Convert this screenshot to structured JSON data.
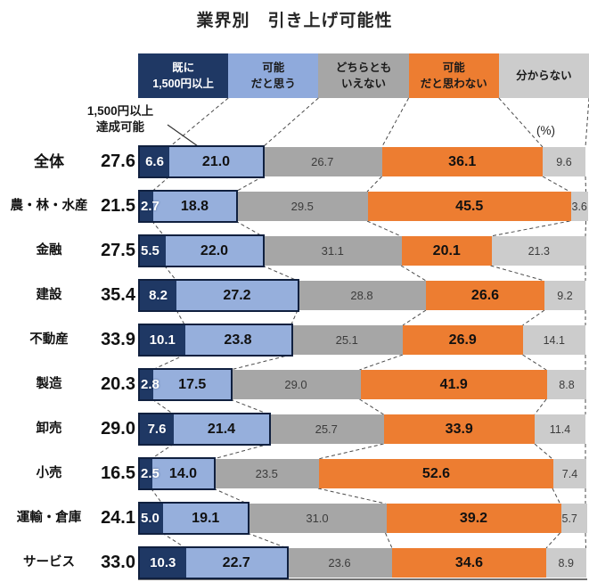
{
  "title": "業界別　引き上げ可能性",
  "unit_label": "(%)",
  "annotation": {
    "line1": "1,500円以上",
    "line2": "達成可能"
  },
  "legend": [
    {
      "label_lines": [
        "既に",
        "1,500円以上"
      ],
      "color": "#1F3864",
      "text_color": "#FFFFFF"
    },
    {
      "label_lines": [
        "可能",
        "だと思う"
      ],
      "color": "#8FAADC",
      "text_color": "#1A1A1A"
    },
    {
      "label_lines": [
        "どちらとも",
        "いえない"
      ],
      "color": "#A6A6A6",
      "text_color": "#1A1A1A"
    },
    {
      "label_lines": [
        "可能",
        "だと思わない"
      ],
      "color": "#ED7D31",
      "text_color": "#1A1A1A"
    },
    {
      "label_lines": [
        "分からない"
      ],
      "color": "#CCCCCC",
      "text_color": "#1A1A1A"
    }
  ],
  "chart_data": {
    "type": "bar",
    "orientation": "horizontal",
    "stacked": true,
    "unit": "%",
    "x_range": [
      0,
      100
    ],
    "grid": false,
    "series": [
      "既に1,500円以上",
      "可能だと思う",
      "どちらともいえない",
      "可能だと思わない",
      "分からない"
    ],
    "colors": [
      "#1F3864",
      "#96AFDC",
      "#A6A6A6",
      "#ED7D31",
      "#CCCCCC"
    ],
    "categories": [
      "全体",
      "農・林・水産",
      "金融",
      "建設",
      "不動産",
      "製造",
      "卸売",
      "小売",
      "運輸・倉庫",
      "サービス"
    ],
    "rows": [
      {
        "category": "全体",
        "total": "27.6",
        "values": [
          6.6,
          21.0,
          26.7,
          36.1,
          9.6
        ],
        "labels": [
          "6.6",
          "21.0",
          "26.7",
          "36.1",
          "9.6"
        ]
      },
      {
        "category": "農・林・水産",
        "total": "21.5",
        "values": [
          2.7,
          18.8,
          29.5,
          45.5,
          3.6
        ],
        "labels": [
          "2.7",
          "18.8",
          "29.5",
          "45.5",
          "3.6"
        ]
      },
      {
        "category": "金融",
        "total": "27.5",
        "values": [
          5.5,
          22.0,
          31.1,
          20.1,
          21.3
        ],
        "labels": [
          "5.5",
          "22.0",
          "31.1",
          "20.1",
          "21.3"
        ]
      },
      {
        "category": "建設",
        "total": "35.4",
        "values": [
          8.2,
          27.2,
          28.8,
          26.6,
          9.2
        ],
        "labels": [
          "8.2",
          "27.2",
          "28.8",
          "26.6",
          "9.2"
        ]
      },
      {
        "category": "不動産",
        "total": "33.9",
        "values": [
          10.1,
          23.8,
          25.1,
          26.9,
          14.1
        ],
        "labels": [
          "10.1",
          "23.8",
          "25.1",
          "26.9",
          "14.1"
        ]
      },
      {
        "category": "製造",
        "total": "20.3",
        "values": [
          2.8,
          17.5,
          29.0,
          41.9,
          8.8
        ],
        "labels": [
          "2.8",
          "17.5",
          "29.0",
          "41.9",
          "8.8"
        ]
      },
      {
        "category": "卸売",
        "total": "29.0",
        "values": [
          7.6,
          21.4,
          25.7,
          33.9,
          11.4
        ],
        "labels": [
          "7.6",
          "21.4",
          "25.7",
          "33.9",
          "11.4"
        ]
      },
      {
        "category": "小売",
        "total": "16.5",
        "values": [
          2.5,
          14.0,
          23.5,
          52.6,
          7.4
        ],
        "labels": [
          "2.5",
          "14.0",
          "23.5",
          "52.6",
          "7.4"
        ]
      },
      {
        "category": "運輸・倉庫",
        "total": "24.1",
        "values": [
          5.0,
          19.1,
          31.0,
          39.2,
          5.7
        ],
        "labels": [
          "5.0",
          "19.1",
          "31.0",
          "39.2",
          "5.7"
        ]
      },
      {
        "category": "サービス",
        "total": "33.0",
        "values": [
          10.3,
          22.7,
          23.6,
          34.6,
          8.9
        ],
        "labels": [
          "10.3",
          "22.7",
          "23.6",
          "34.6",
          "8.9"
        ]
      }
    ]
  }
}
